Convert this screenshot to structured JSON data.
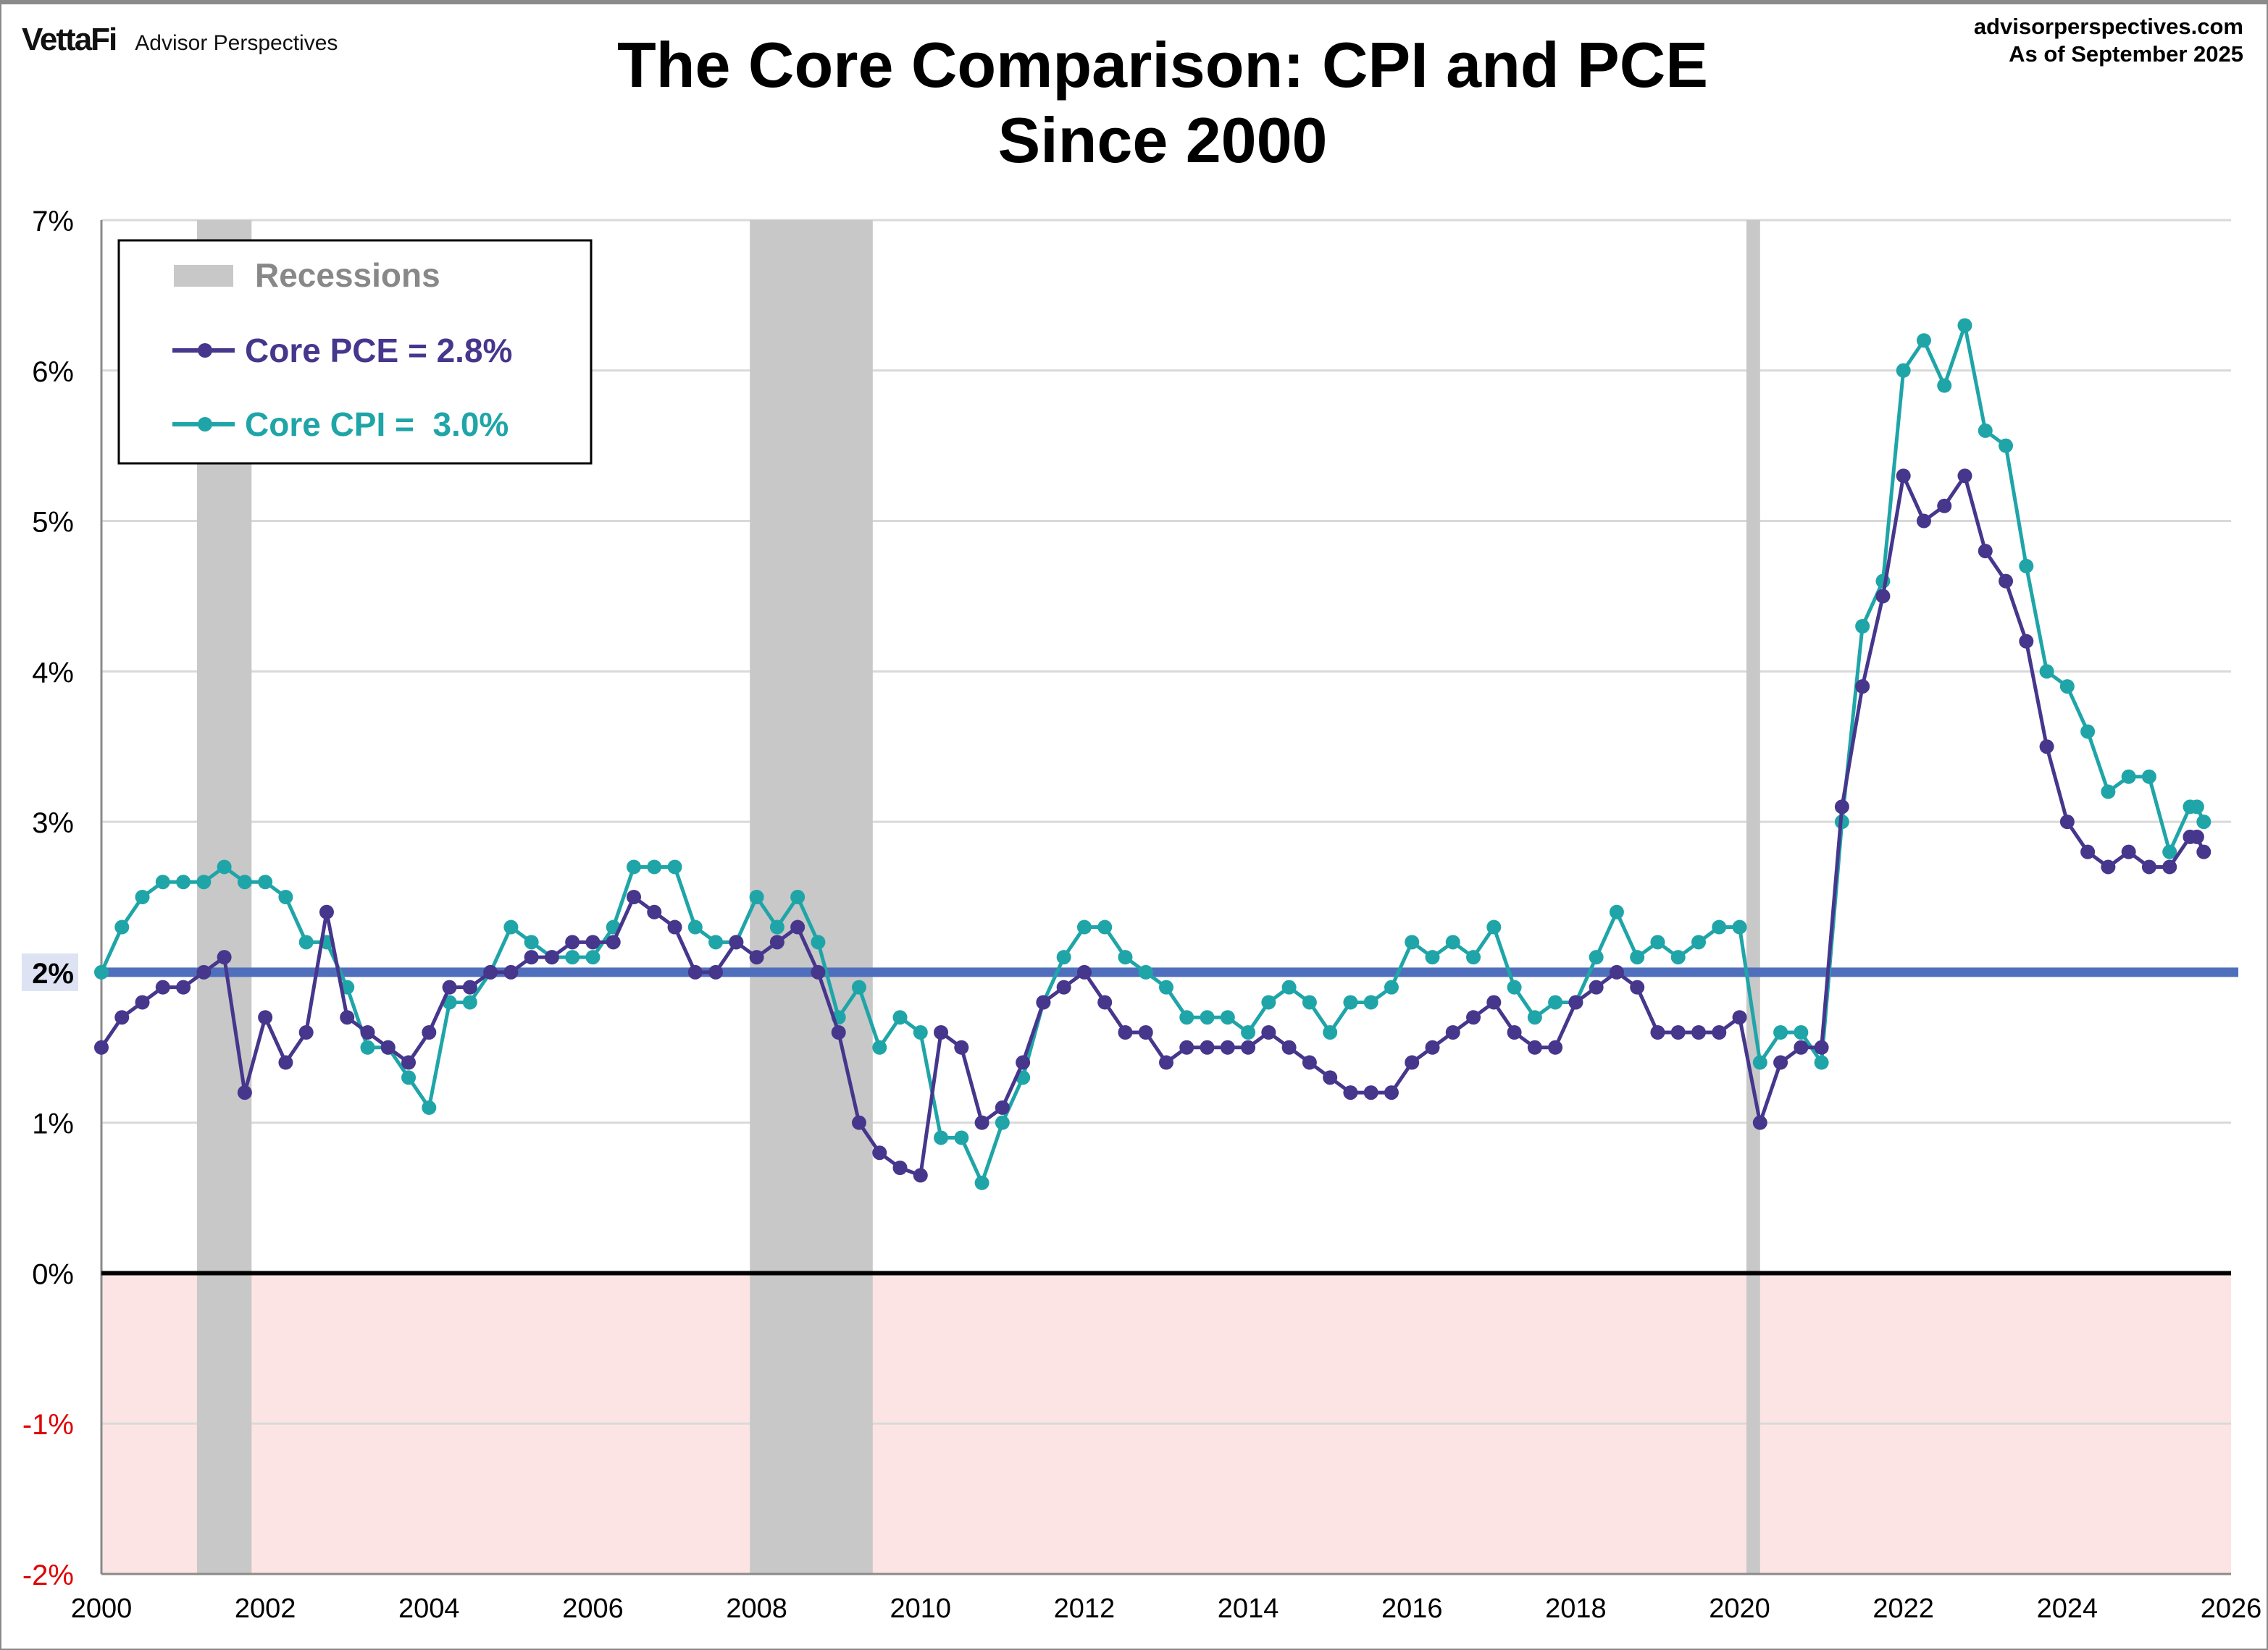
{
  "header": {
    "logo_brand": "VettaFi",
    "logo_sub": "Advisor Perspectives",
    "source": "advisorperspectives.com",
    "as_of": "As of September 2025"
  },
  "chart_data": {
    "type": "line",
    "title": "The Core Comparison: CPI and PCE",
    "subtitle": "Since 2000",
    "xlabel": "",
    "ylabel": "",
    "xlim": [
      "2000-01",
      "2026-01"
    ],
    "ylim": [
      -2,
      7
    ],
    "x_ticks": [
      "2000",
      "2002",
      "2004",
      "2006",
      "2008",
      "2010",
      "2012",
      "2014",
      "2016",
      "2018",
      "2020",
      "2022",
      "2024",
      "2026"
    ],
    "y_ticks": [
      "7%",
      "6%",
      "5%",
      "4%",
      "3%",
      "2%",
      "1%",
      "0%",
      "-1%",
      "-2%"
    ],
    "grid": true,
    "legend_position": "top-left",
    "reference_line": {
      "value": 2,
      "label": "2%",
      "color": "#4f6fbd"
    },
    "zero_line_color": "#000000",
    "negative_region_color": "#fde4e4",
    "recessions": {
      "label": "Recessions",
      "color": "#c8c8c8",
      "periods": [
        [
          "2001-03",
          "2001-11"
        ],
        [
          "2007-12",
          "2009-06"
        ],
        [
          "2020-02",
          "2020-04"
        ]
      ]
    },
    "x": [
      "2000-01",
      "2000-04",
      "2000-07",
      "2000-10",
      "2001-01",
      "2001-04",
      "2001-07",
      "2001-10",
      "2002-01",
      "2002-04",
      "2002-07",
      "2002-10",
      "2003-01",
      "2003-04",
      "2003-07",
      "2003-10",
      "2004-01",
      "2004-04",
      "2004-07",
      "2004-10",
      "2005-01",
      "2005-04",
      "2005-07",
      "2005-10",
      "2006-01",
      "2006-04",
      "2006-07",
      "2006-10",
      "2007-01",
      "2007-04",
      "2007-07",
      "2007-10",
      "2008-01",
      "2008-04",
      "2008-07",
      "2008-10",
      "2009-01",
      "2009-04",
      "2009-07",
      "2009-10",
      "2010-01",
      "2010-04",
      "2010-07",
      "2010-10",
      "2011-01",
      "2011-04",
      "2011-07",
      "2011-10",
      "2012-01",
      "2012-04",
      "2012-07",
      "2012-10",
      "2013-01",
      "2013-04",
      "2013-07",
      "2013-10",
      "2014-01",
      "2014-04",
      "2014-07",
      "2014-10",
      "2015-01",
      "2015-04",
      "2015-07",
      "2015-10",
      "2016-01",
      "2016-04",
      "2016-07",
      "2016-10",
      "2017-01",
      "2017-04",
      "2017-07",
      "2017-10",
      "2018-01",
      "2018-04",
      "2018-07",
      "2018-10",
      "2019-01",
      "2019-04",
      "2019-07",
      "2019-10",
      "2020-01",
      "2020-04",
      "2020-07",
      "2020-10",
      "2021-01",
      "2021-04",
      "2021-07",
      "2021-10",
      "2022-01",
      "2022-04",
      "2022-07",
      "2022-10",
      "2023-01",
      "2023-04",
      "2023-07",
      "2023-10",
      "2024-01",
      "2024-04",
      "2024-07",
      "2024-10",
      "2025-01",
      "2025-04",
      "2025-07",
      "2025-08",
      "2025-09"
    ],
    "series": [
      {
        "name": "Core PCE = 2.8%",
        "color": "#46368c",
        "values": [
          1.5,
          1.7,
          1.8,
          1.9,
          1.9,
          2.0,
          2.1,
          1.2,
          1.7,
          1.4,
          1.6,
          2.4,
          1.7,
          1.6,
          1.5,
          1.4,
          1.6,
          1.9,
          1.9,
          2.0,
          2.0,
          2.1,
          2.1,
          2.2,
          2.2,
          2.2,
          2.5,
          2.4,
          2.3,
          2.0,
          2.0,
          2.2,
          2.1,
          2.2,
          2.3,
          2.0,
          1.6,
          1.0,
          0.8,
          0.7,
          0.65,
          1.6,
          1.5,
          1.0,
          1.1,
          1.4,
          1.8,
          1.9,
          2.0,
          1.8,
          1.6,
          1.6,
          1.4,
          1.5,
          1.5,
          1.5,
          1.5,
          1.6,
          1.5,
          1.4,
          1.3,
          1.2,
          1.2,
          1.2,
          1.4,
          1.5,
          1.6,
          1.7,
          1.8,
          1.6,
          1.5,
          1.5,
          1.8,
          1.9,
          2.0,
          1.9,
          1.6,
          1.6,
          1.6,
          1.6,
          1.7,
          1.0,
          1.4,
          1.5,
          1.5,
          3.1,
          3.9,
          4.5,
          5.3,
          5.0,
          5.1,
          5.3,
          4.8,
          4.6,
          4.2,
          3.5,
          3.0,
          2.8,
          2.7,
          2.8,
          2.7,
          2.7,
          2.9,
          2.9,
          2.8
        ]
      },
      {
        "name": "Core CPI =  3.0%",
        "color": "#1fa5a8",
        "values": [
          2.0,
          2.3,
          2.5,
          2.6,
          2.6,
          2.6,
          2.7,
          2.6,
          2.6,
          2.5,
          2.2,
          2.2,
          1.9,
          1.5,
          1.5,
          1.3,
          1.1,
          1.8,
          1.8,
          2.0,
          2.3,
          2.2,
          2.1,
          2.1,
          2.1,
          2.3,
          2.7,
          2.7,
          2.7,
          2.3,
          2.2,
          2.2,
          2.5,
          2.3,
          2.5,
          2.2,
          1.7,
          1.9,
          1.5,
          1.7,
          1.6,
          0.9,
          0.9,
          0.6,
          1.0,
          1.3,
          1.8,
          2.1,
          2.3,
          2.3,
          2.1,
          2.0,
          1.9,
          1.7,
          1.7,
          1.7,
          1.6,
          1.8,
          1.9,
          1.8,
          1.6,
          1.8,
          1.8,
          1.9,
          2.2,
          2.1,
          2.2,
          2.1,
          2.3,
          1.9,
          1.7,
          1.8,
          1.8,
          2.1,
          2.4,
          2.1,
          2.2,
          2.1,
          2.2,
          2.3,
          2.3,
          1.4,
          1.6,
          1.6,
          1.4,
          3.0,
          4.3,
          4.6,
          6.0,
          6.2,
          5.9,
          6.3,
          5.6,
          5.5,
          4.7,
          4.0,
          3.9,
          3.6,
          3.2,
          3.3,
          3.3,
          2.8,
          3.1,
          3.1,
          3.0
        ]
      }
    ]
  }
}
